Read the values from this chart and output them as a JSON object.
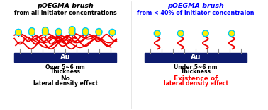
{
  "bg_color": "#ffffff",
  "left_title_italic": "p",
  "left_title_rest": "OEGMA brush",
  "left_title_line2": "from all initiator concentrations",
  "right_title_italic": "p",
  "right_title_rest": "OEGMA brush",
  "right_title_line2": "from < 40% of initiator concentraion",
  "left_sub1": "Over 5~6 nm",
  "left_sub2": "Thickness",
  "left_effect1": "No",
  "left_effect2": "lateral density effect",
  "left_effect_color": "#000000",
  "right_sub1": "Under 5~6 nm",
  "right_sub2": "Thickness",
  "right_effect1": "Existence of",
  "right_effect2": "lateral density effect",
  "right_effect_color": "#ff0000",
  "right_title_color": "#0000ff",
  "left_title_color": "#000000",
  "au_color": "#0d1b6e",
  "au_text_color": "#ffffff",
  "brush_red": "#ee0000",
  "ball_yellow": "#ffee00",
  "ball_cyan": "#00ccee",
  "stick_color": "#888888"
}
